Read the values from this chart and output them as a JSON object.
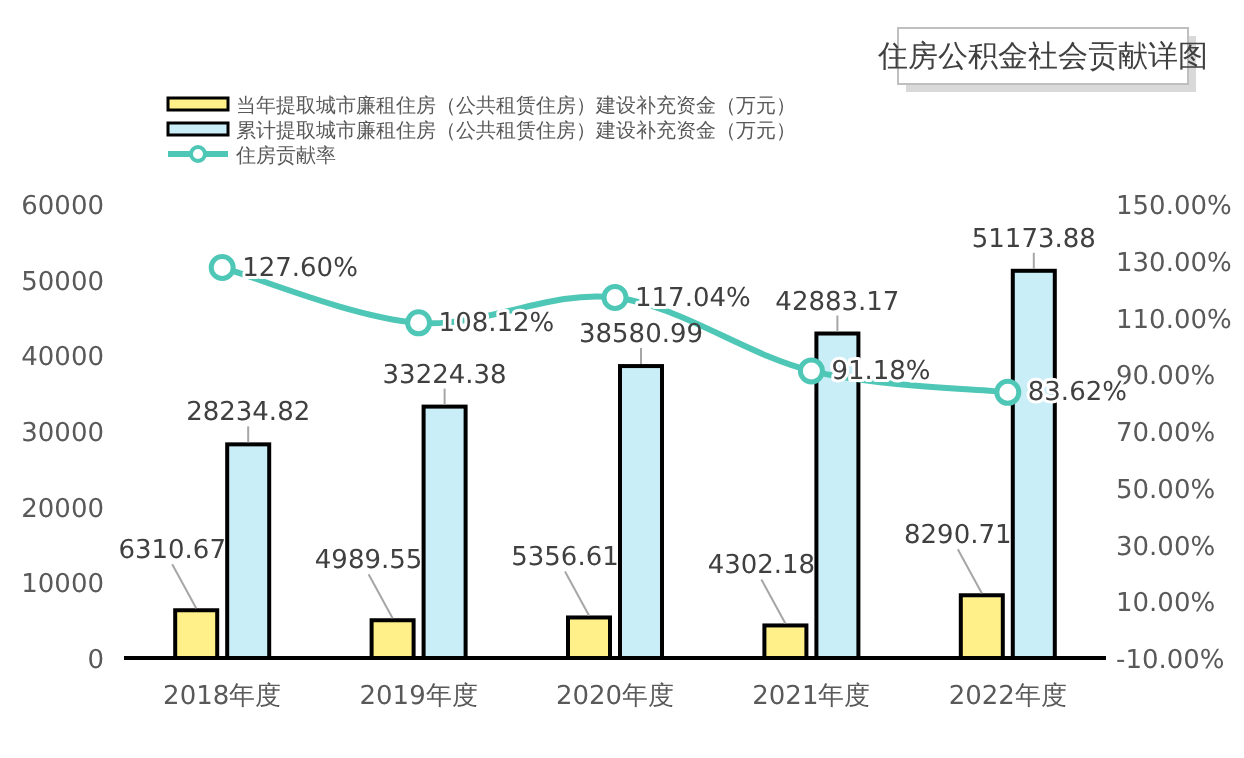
{
  "chart_data": {
    "type": "bar",
    "title": "住房公积金社会贡献详图",
    "categories": [
      "2018年度",
      "2019年度",
      "2020年度",
      "2021年度",
      "2022年度"
    ],
    "series": [
      {
        "name": "当年提取城市廉租住房（公共租赁住房）建设补充资金（万元）",
        "color": "#fff08a",
        "values": [
          6310.67,
          4989.55,
          5356.61,
          4302.18,
          8290.71
        ],
        "value_labels": [
          "6310.67",
          "4989.55",
          "5356.61",
          "4302.18",
          "8290.71"
        ]
      },
      {
        "name": "累计提取城市廉租住房（公共租赁住房）建设补充资金（万元）",
        "color": "#c9eef7",
        "values": [
          28234.82,
          33224.38,
          38580.99,
          42883.17,
          51173.88
        ],
        "value_labels": [
          "28234.82",
          "33224.38",
          "38580.99",
          "42883.17",
          "51173.88"
        ]
      },
      {
        "name": "住房贡献率",
        "type": "line",
        "axis": "y2",
        "color": "#4fc7b6",
        "values": [
          127.6,
          108.12,
          117.04,
          91.18,
          83.62
        ],
        "value_labels": [
          "127.60%",
          "108.12%",
          "117.04%",
          "91.18%",
          "83.62%"
        ]
      }
    ],
    "ylim": [
      0,
      60000
    ],
    "yticks": [
      0,
      10000,
      20000,
      30000,
      40000,
      50000,
      60000
    ],
    "y2lim": [
      -10,
      150
    ],
    "y2ticks": [
      {
        "value": -10,
        "label": "-10.00%"
      },
      {
        "value": 10,
        "label": "10.00%"
      },
      {
        "value": 30,
        "label": "30.00%"
      },
      {
        "value": 50,
        "label": "50.00%"
      },
      {
        "value": 70,
        "label": "70.00%"
      },
      {
        "value": 90,
        "label": "90.00%"
      },
      {
        "value": 110,
        "label": "110.00%"
      },
      {
        "value": 130,
        "label": "130.00%"
      },
      {
        "value": 150,
        "label": "150.00%"
      }
    ],
    "marker": "circle",
    "legend": "top left"
  }
}
